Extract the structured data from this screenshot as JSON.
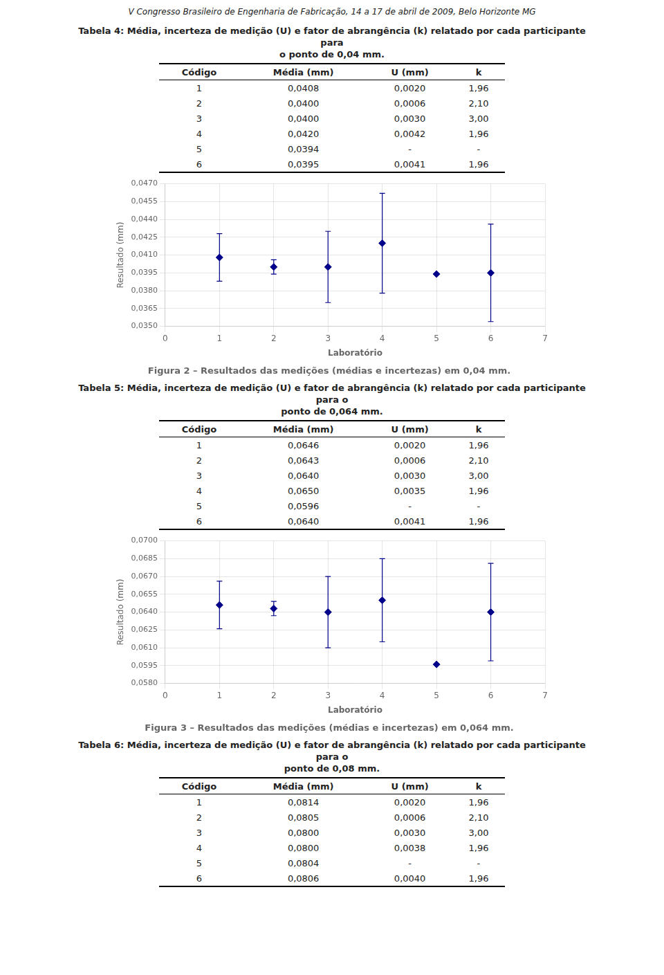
{
  "header": "V Congresso Brasileiro de Engenharia de Fabricação, 14 a 17 de abril de 2009, Belo Horizonte  MG",
  "tables": [
    {
      "title": [
        "Tabela 4: Média, incerteza de medição (U) e fator de abrangência (k) relatado por cada participante para",
        "o ponto de 0,04 mm."
      ],
      "columns": [
        "Código",
        "Média (mm)",
        "U (mm)",
        "k"
      ],
      "rows": [
        [
          "1",
          "0,0408",
          "0,0020",
          "1,96"
        ],
        [
          "2",
          "0,0400",
          "0,0006",
          "2,10"
        ],
        [
          "3",
          "0,0400",
          "0,0030",
          "3,00"
        ],
        [
          "4",
          "0,0420",
          "0,0042",
          "1,96"
        ],
        [
          "5",
          "0,0394",
          "-",
          "-"
        ],
        [
          "6",
          "0,0395",
          "0,0041",
          "1,96"
        ]
      ]
    },
    {
      "title": [
        "Tabela 5: Média, incerteza de medição (U) e fator de abrangência (k) relatado por cada participante para o",
        "ponto de 0,064 mm."
      ],
      "columns": [
        "Código",
        "Média (mm)",
        "U (mm)",
        "k"
      ],
      "rows": [
        [
          "1",
          "0,0646",
          "0,0020",
          "1,96"
        ],
        [
          "2",
          "0,0643",
          "0,0006",
          "2,10"
        ],
        [
          "3",
          "0,0640",
          "0,0030",
          "3,00"
        ],
        [
          "4",
          "0,0650",
          "0,0035",
          "1,96"
        ],
        [
          "5",
          "0,0596",
          "-",
          "-"
        ],
        [
          "6",
          "0,0640",
          "0,0041",
          "1,96"
        ]
      ]
    },
    {
      "title": [
        "Tabela 6: Média, incerteza de medição (U) e fator de abrangência (k) relatado por cada participante para o",
        "ponto de 0,08 mm."
      ],
      "columns": [
        "Código",
        "Média (mm)",
        "U (mm)",
        "k"
      ],
      "rows": [
        [
          "1",
          "0,0814",
          "0,0020",
          "1,96"
        ],
        [
          "2",
          "0,0805",
          "0,0006",
          "2,10"
        ],
        [
          "3",
          "0,0800",
          "0,0030",
          "3,00"
        ],
        [
          "4",
          "0,0800",
          "0,0038",
          "1,96"
        ],
        [
          "5",
          "0,0804",
          "-",
          "-"
        ],
        [
          "6",
          "0,0806",
          "0,0040",
          "1,96"
        ]
      ]
    }
  ],
  "chart_data": [
    {
      "type": "scatter",
      "title": "Figura 2 – Resultados das medições (médias e incertezas) em 0,04 mm.",
      "x_label": "Laboratório",
      "y_label": "Resultado (mm)",
      "x": [
        1,
        2,
        3,
        4,
        5,
        6
      ],
      "values": [
        0.0408,
        0.04,
        0.04,
        0.042,
        0.0394,
        0.0395
      ],
      "errors": [
        0.002,
        0.0006,
        0.003,
        0.0042,
        null,
        0.0041
      ],
      "color": "#00008B",
      "marker": "diamond",
      "xlim": [
        0,
        7
      ],
      "xticks": [
        0,
        1,
        2,
        3,
        4,
        5,
        6,
        7
      ],
      "ylim": [
        0.035,
        0.047
      ],
      "yticks": [
        {
          "value": 0.035,
          "label": "0,0350"
        },
        {
          "value": 0.0365,
          "label": "0,0365"
        },
        {
          "value": 0.038,
          "label": "0,0380"
        },
        {
          "value": 0.0395,
          "label": "0,0395"
        },
        {
          "value": 0.041,
          "label": "0,0410"
        },
        {
          "value": 0.0425,
          "label": "0,0425"
        },
        {
          "value": 0.044,
          "label": "0,0440"
        },
        {
          "value": 0.0455,
          "label": "0,0455"
        },
        {
          "value": 0.047,
          "label": "0,0470"
        }
      ],
      "grid": true
    },
    {
      "type": "scatter",
      "title": "Figura 3 – Resultados das medições (médias e incertezas) em 0,064 mm.",
      "x_label": "Laboratório",
      "y_label": "Resultado (mm)",
      "x": [
        1,
        2,
        3,
        4,
        5,
        6
      ],
      "values": [
        0.0646,
        0.0643,
        0.064,
        0.065,
        0.0596,
        0.064
      ],
      "errors": [
        0.002,
        0.0006,
        0.003,
        0.0035,
        null,
        0.0041
      ],
      "color": "#00008B",
      "marker": "diamond",
      "xlim": [
        0,
        7
      ],
      "xticks": [
        0,
        1,
        2,
        3,
        4,
        5,
        6,
        7
      ],
      "ylim": [
        0.058,
        0.07
      ],
      "yticks": [
        {
          "value": 0.058,
          "label": "0,0580"
        },
        {
          "value": 0.0595,
          "label": "0,0595"
        },
        {
          "value": 0.061,
          "label": "0,0610"
        },
        {
          "value": 0.0625,
          "label": "0,0625"
        },
        {
          "value": 0.064,
          "label": "0,0640"
        },
        {
          "value": 0.0655,
          "label": "0,0655"
        },
        {
          "value": 0.067,
          "label": "0,0670"
        },
        {
          "value": 0.0685,
          "label": "0,0685"
        },
        {
          "value": 0.07,
          "label": "0,0700"
        }
      ],
      "grid": true
    }
  ]
}
